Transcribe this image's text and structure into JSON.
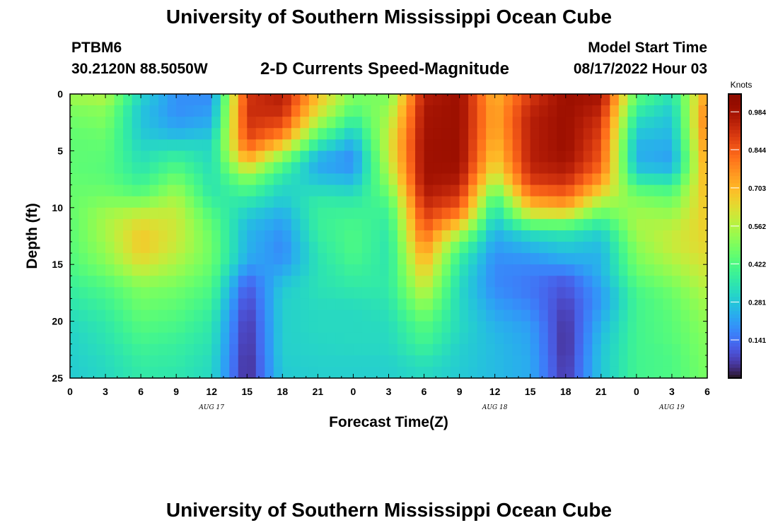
{
  "header": {
    "title": "University of Southern Mississippi Ocean Cube",
    "station": "PTBM6",
    "coords": "30.2120N  88.5050W",
    "start_label": "Model Start Time",
    "start_value": "08/17/2022 Hour 03"
  },
  "footer": {
    "title": "University of Southern Mississippi Ocean Cube"
  },
  "chart_data": {
    "type": "heatmap",
    "title": "2-D Currents Speed-Magnitude",
    "xlabel": "Forecast Time(Z)",
    "ylabel": "Depth (ft)",
    "x_tick_labels": [
      "0",
      "3",
      "6",
      "9",
      "12",
      "15",
      "18",
      "21",
      "0",
      "3",
      "6",
      "9",
      "12",
      "15",
      "18",
      "21",
      "0",
      "3",
      "6"
    ],
    "date_labels": [
      {
        "label": "AUG 17",
        "tick_index": 4
      },
      {
        "label": "AUG 18",
        "tick_index": 12
      },
      {
        "label": "AUG 19",
        "tick_index": 17
      }
    ],
    "xlim_hours": [
      0,
      54
    ],
    "y_ticks": [
      0,
      5,
      10,
      15,
      20,
      25
    ],
    "ylim": [
      0,
      25
    ],
    "y_inverted": true,
    "colorbar": {
      "unit": "Knots",
      "min": 0,
      "max": 1.05,
      "ticks": [
        0.141,
        0.281,
        0.422,
        0.562,
        0.703,
        0.844,
        0.984
      ],
      "colormap": "turbo"
    },
    "depth_levels_ft": [
      0,
      1,
      2,
      3,
      4,
      5,
      6,
      7,
      8,
      9,
      10,
      11,
      12,
      13,
      14,
      15,
      16,
      17,
      18,
      19,
      20,
      21,
      22,
      23,
      24,
      25
    ],
    "time_hours": [
      0,
      3,
      6,
      9,
      12,
      15,
      18,
      21,
      24,
      27,
      30,
      33,
      36,
      39,
      42,
      45,
      48,
      51,
      54
    ],
    "values_knots": [
      [
        0.55,
        0.58,
        0.32,
        0.2,
        0.18,
        0.9,
        0.95,
        0.7,
        0.5,
        0.48,
        0.95,
        1.0,
        0.7,
        0.9,
        1.0,
        0.98,
        0.45,
        0.35,
        0.75
      ],
      [
        0.5,
        0.52,
        0.28,
        0.18,
        0.2,
        0.92,
        0.95,
        0.65,
        0.45,
        0.52,
        0.97,
        1.0,
        0.72,
        0.92,
        1.0,
        0.96,
        0.4,
        0.3,
        0.8
      ],
      [
        0.48,
        0.5,
        0.28,
        0.2,
        0.22,
        0.92,
        0.9,
        0.6,
        0.4,
        0.55,
        0.98,
        1.0,
        0.72,
        0.95,
        1.0,
        0.92,
        0.34,
        0.28,
        0.82
      ],
      [
        0.46,
        0.48,
        0.28,
        0.22,
        0.25,
        0.9,
        0.85,
        0.5,
        0.32,
        0.58,
        0.98,
        1.0,
        0.72,
        0.95,
        1.0,
        0.9,
        0.3,
        0.26,
        0.82
      ],
      [
        0.45,
        0.46,
        0.3,
        0.28,
        0.3,
        0.88,
        0.75,
        0.4,
        0.26,
        0.6,
        0.99,
        1.0,
        0.7,
        0.95,
        1.0,
        0.88,
        0.26,
        0.25,
        0.8
      ],
      [
        0.45,
        0.45,
        0.32,
        0.35,
        0.32,
        0.8,
        0.6,
        0.3,
        0.2,
        0.6,
        0.99,
        1.0,
        0.68,
        0.95,
        1.0,
        0.86,
        0.24,
        0.22,
        0.78
      ],
      [
        0.45,
        0.44,
        0.34,
        0.4,
        0.32,
        0.7,
        0.45,
        0.22,
        0.18,
        0.58,
        0.99,
        1.0,
        0.65,
        0.95,
        0.98,
        0.85,
        0.25,
        0.22,
        0.76
      ],
      [
        0.45,
        0.44,
        0.36,
        0.45,
        0.34,
        0.55,
        0.38,
        0.25,
        0.22,
        0.55,
        0.99,
        0.98,
        0.6,
        0.92,
        0.95,
        0.8,
        0.3,
        0.28,
        0.74
      ],
      [
        0.46,
        0.46,
        0.4,
        0.5,
        0.34,
        0.45,
        0.32,
        0.3,
        0.28,
        0.5,
        0.98,
        0.95,
        0.52,
        0.88,
        0.9,
        0.72,
        0.4,
        0.38,
        0.72
      ],
      [
        0.46,
        0.48,
        0.45,
        0.55,
        0.36,
        0.38,
        0.3,
        0.35,
        0.34,
        0.45,
        0.95,
        0.9,
        0.42,
        0.78,
        0.82,
        0.62,
        0.48,
        0.45,
        0.7
      ],
      [
        0.46,
        0.52,
        0.55,
        0.58,
        0.4,
        0.32,
        0.26,
        0.38,
        0.38,
        0.4,
        0.92,
        0.85,
        0.35,
        0.68,
        0.72,
        0.5,
        0.52,
        0.5,
        0.68
      ],
      [
        0.45,
        0.55,
        0.62,
        0.6,
        0.44,
        0.28,
        0.22,
        0.38,
        0.4,
        0.38,
        0.88,
        0.75,
        0.3,
        0.55,
        0.55,
        0.42,
        0.55,
        0.55,
        0.68
      ],
      [
        0.44,
        0.55,
        0.66,
        0.6,
        0.46,
        0.25,
        0.2,
        0.38,
        0.42,
        0.36,
        0.85,
        0.6,
        0.25,
        0.35,
        0.36,
        0.3,
        0.55,
        0.58,
        0.66
      ],
      [
        0.44,
        0.54,
        0.68,
        0.6,
        0.47,
        0.25,
        0.18,
        0.36,
        0.42,
        0.35,
        0.8,
        0.48,
        0.22,
        0.28,
        0.32,
        0.28,
        0.52,
        0.6,
        0.65
      ],
      [
        0.43,
        0.52,
        0.66,
        0.58,
        0.47,
        0.24,
        0.18,
        0.35,
        0.42,
        0.35,
        0.75,
        0.4,
        0.2,
        0.22,
        0.25,
        0.24,
        0.5,
        0.58,
        0.64
      ],
      [
        0.42,
        0.5,
        0.62,
        0.55,
        0.46,
        0.22,
        0.2,
        0.34,
        0.4,
        0.35,
        0.7,
        0.36,
        0.18,
        0.18,
        0.22,
        0.25,
        0.48,
        0.55,
        0.62
      ],
      [
        0.4,
        0.46,
        0.56,
        0.52,
        0.44,
        0.15,
        0.25,
        0.34,
        0.38,
        0.36,
        0.65,
        0.34,
        0.18,
        0.16,
        0.12,
        0.24,
        0.45,
        0.52,
        0.6
      ],
      [
        0.38,
        0.42,
        0.5,
        0.48,
        0.42,
        0.1,
        0.28,
        0.34,
        0.36,
        0.36,
        0.6,
        0.32,
        0.18,
        0.15,
        0.1,
        0.22,
        0.42,
        0.48,
        0.58
      ],
      [
        0.36,
        0.4,
        0.48,
        0.46,
        0.4,
        0.08,
        0.3,
        0.33,
        0.34,
        0.35,
        0.55,
        0.32,
        0.2,
        0.16,
        0.08,
        0.2,
        0.4,
        0.46,
        0.55
      ],
      [
        0.34,
        0.38,
        0.46,
        0.44,
        0.38,
        0.06,
        0.3,
        0.32,
        0.32,
        0.34,
        0.5,
        0.32,
        0.22,
        0.18,
        0.06,
        0.22,
        0.4,
        0.45,
        0.54
      ],
      [
        0.32,
        0.36,
        0.44,
        0.42,
        0.36,
        0.05,
        0.3,
        0.32,
        0.32,
        0.33,
        0.45,
        0.32,
        0.24,
        0.2,
        0.05,
        0.24,
        0.4,
        0.44,
        0.52
      ],
      [
        0.31,
        0.35,
        0.42,
        0.4,
        0.35,
        0.04,
        0.3,
        0.32,
        0.32,
        0.32,
        0.42,
        0.32,
        0.25,
        0.22,
        0.04,
        0.26,
        0.4,
        0.44,
        0.51
      ],
      [
        0.3,
        0.34,
        0.4,
        0.38,
        0.34,
        0.04,
        0.3,
        0.31,
        0.32,
        0.32,
        0.4,
        0.3,
        0.26,
        0.22,
        0.04,
        0.27,
        0.4,
        0.43,
        0.5
      ],
      [
        0.3,
        0.33,
        0.38,
        0.37,
        0.33,
        0.03,
        0.3,
        0.31,
        0.31,
        0.31,
        0.36,
        0.3,
        0.26,
        0.23,
        0.04,
        0.28,
        0.4,
        0.42,
        0.5
      ],
      [
        0.29,
        0.32,
        0.37,
        0.36,
        0.32,
        0.03,
        0.29,
        0.3,
        0.3,
        0.3,
        0.33,
        0.29,
        0.26,
        0.23,
        0.05,
        0.28,
        0.4,
        0.42,
        0.49
      ],
      [
        0.29,
        0.32,
        0.36,
        0.35,
        0.32,
        0.03,
        0.29,
        0.3,
        0.3,
        0.3,
        0.32,
        0.29,
        0.26,
        0.23,
        0.05,
        0.28,
        0.4,
        0.42,
        0.49
      ]
    ]
  }
}
